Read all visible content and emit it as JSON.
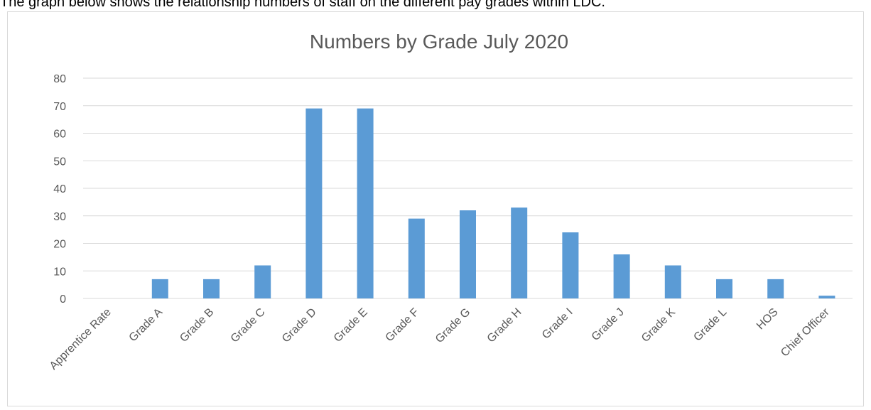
{
  "page": {
    "intro_text": "The graph below shows the relationship numbers of staff on the different pay grades within LDC."
  },
  "chart_data": {
    "type": "bar",
    "title": "Numbers by Grade July 2020",
    "xlabel": "",
    "ylabel": "",
    "categories": [
      "Apprentice Rate",
      "Grade A",
      "Grade B",
      "Grade C",
      "Grade D",
      "Grade E",
      "Grade F",
      "Grade G",
      "Grade H",
      "Grade I",
      "Grade J",
      "Grade K",
      "Grade L",
      "HOS",
      "Chief Officer"
    ],
    "values": [
      0,
      7,
      7,
      12,
      69,
      69,
      29,
      32,
      33,
      24,
      16,
      12,
      7,
      7,
      1
    ],
    "ylim": [
      0,
      80
    ],
    "yticks": [
      0,
      10,
      20,
      30,
      40,
      50,
      60,
      70,
      80
    ],
    "grid": true,
    "legend": "none",
    "bar_color": "#5b9bd5",
    "grid_color": "#d9d9d9",
    "text_color": "#595959"
  }
}
